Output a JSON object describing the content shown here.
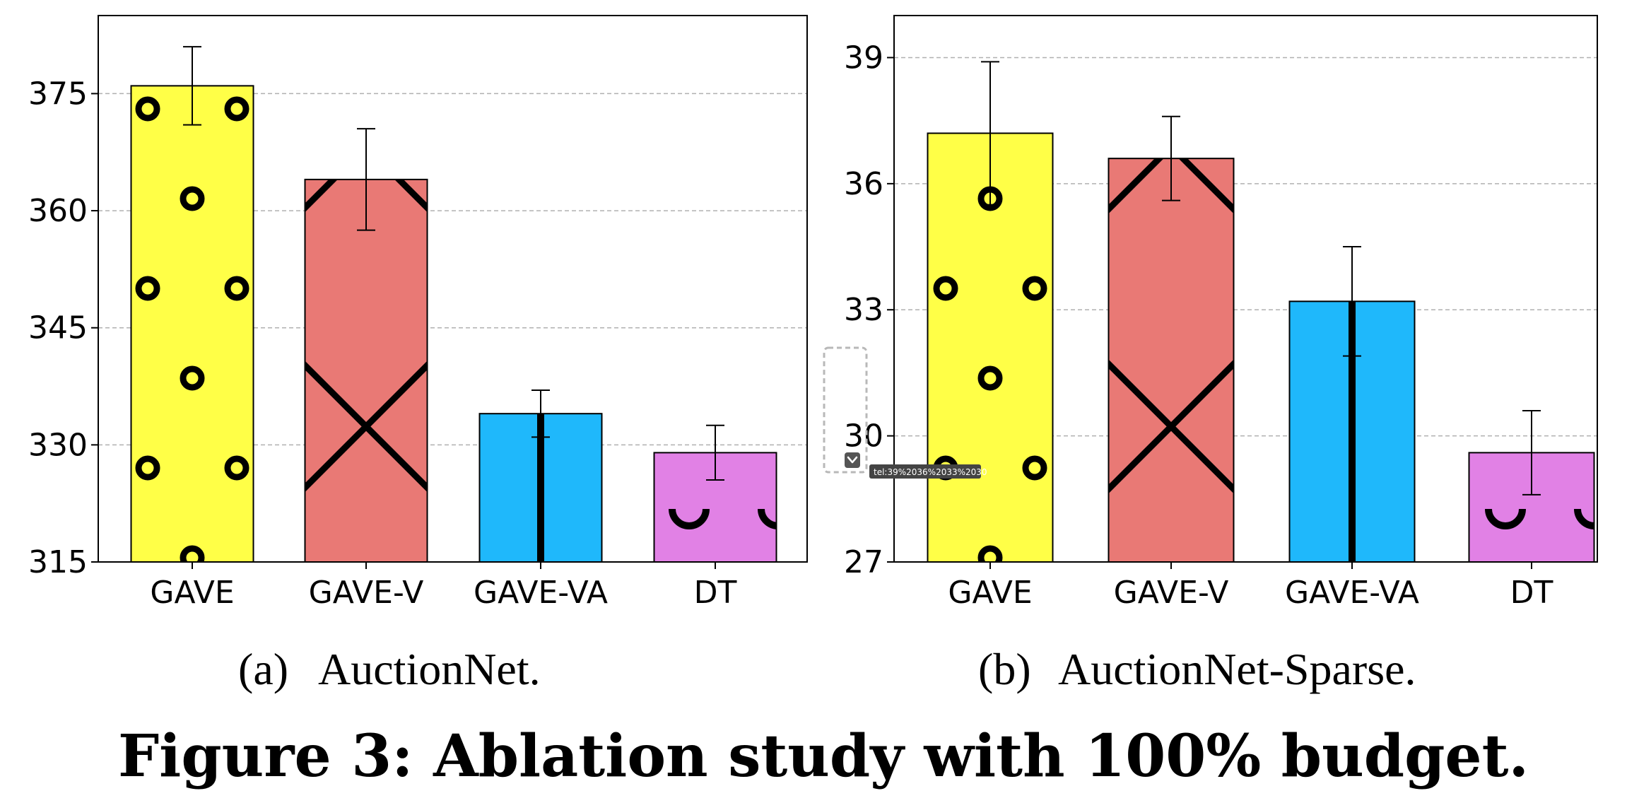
{
  "chart_data": [
    {
      "type": "bar",
      "categories": [
        "GAVE",
        "GAVE-V",
        "GAVE-VA",
        "DT"
      ],
      "values": [
        376,
        364,
        334,
        329
      ],
      "errors": [
        5,
        6.5,
        3,
        3.5
      ],
      "ylim": [
        315,
        385
      ],
      "yticks": [
        "315",
        "330",
        "345",
        "360",
        "375"
      ],
      "grid": true,
      "colors": [
        "#ffff47",
        "#e97975",
        "#1fb8fb",
        "#e181e5"
      ],
      "hatches": [
        "dots",
        "cross",
        "vline",
        "rings"
      ],
      "caption_label": "(a)",
      "caption_text": "AuctionNet."
    },
    {
      "type": "bar",
      "categories": [
        "GAVE",
        "GAVE-V",
        "GAVE-VA",
        "DT"
      ],
      "values": [
        37.2,
        36.6,
        33.2,
        29.6
      ],
      "errors": [
        1.7,
        1.0,
        1.3,
        1.0
      ],
      "ylim": [
        27,
        40
      ],
      "yticks": [
        "27",
        "30",
        "33",
        "36",
        "39"
      ],
      "grid": true,
      "colors": [
        "#ffff47",
        "#e97975",
        "#1fb8fb",
        "#e181e5"
      ],
      "hatches": [
        "dots",
        "cross",
        "vline",
        "rings"
      ],
      "caption_label": "(b)",
      "caption_text": "AuctionNet-Sparse."
    }
  ],
  "figure_caption": "Figure 3: Ablation study with 100% budget.",
  "overlay": {
    "tooltip": "tel:39%2036%2033%2030",
    "chevron_icon": "chevron-down-icon"
  }
}
